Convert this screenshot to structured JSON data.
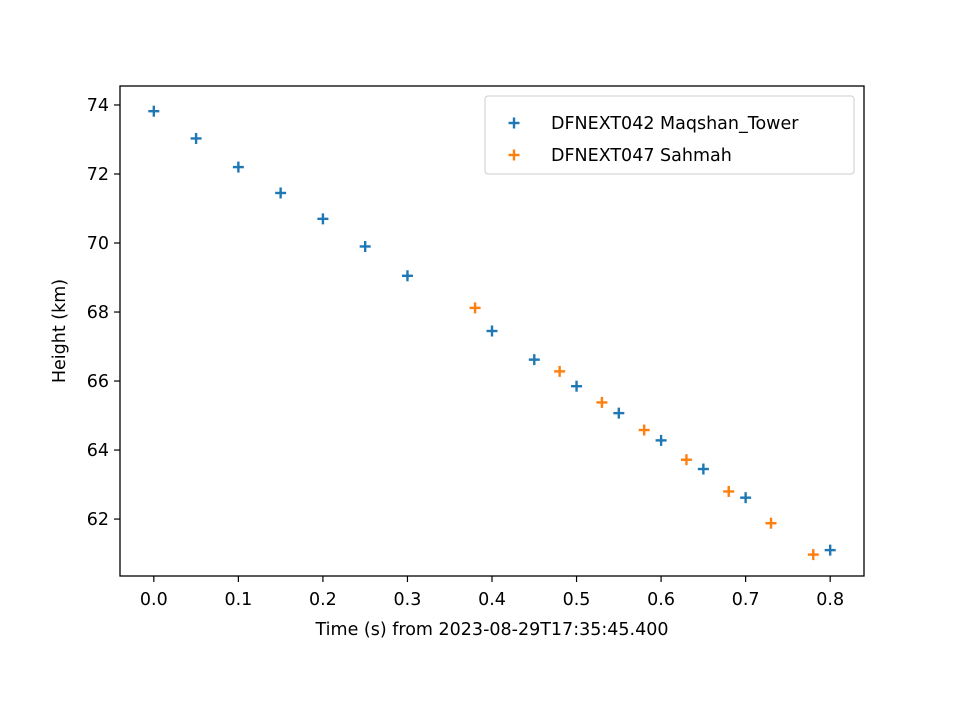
{
  "chart_data": {
    "type": "scatter",
    "title": "",
    "xlabel": "Time (s) from 2023-08-29T17:35:45.400",
    "ylabel": "Height (km)",
    "xlim": [
      -0.04,
      0.84
    ],
    "ylim": [
      60.35,
      74.55
    ],
    "xticks": [
      0.0,
      0.1,
      0.2,
      0.3,
      0.4,
      0.5,
      0.6,
      0.7,
      0.8
    ],
    "xtick_labels": [
      "0.0",
      "0.1",
      "0.2",
      "0.3",
      "0.4",
      "0.5",
      "0.6",
      "0.7",
      "0.8"
    ],
    "yticks": [
      62,
      64,
      66,
      68,
      70,
      72,
      74
    ],
    "ytick_labels": [
      "62",
      "64",
      "66",
      "68",
      "70",
      "72",
      "74"
    ],
    "grid": false,
    "legend_position": "top-right",
    "marker": "plus",
    "series": [
      {
        "name": "DFNEXT042 Maqshan_Tower",
        "color": "#1f77b4",
        "x": [
          0.0,
          0.05,
          0.1,
          0.15,
          0.2,
          0.25,
          0.3,
          0.4,
          0.45,
          0.5,
          0.55,
          0.6,
          0.65,
          0.7,
          0.8
        ],
        "y": [
          73.82,
          73.03,
          72.2,
          71.45,
          70.7,
          69.9,
          69.05,
          67.45,
          66.62,
          65.85,
          65.07,
          64.28,
          63.45,
          62.62,
          61.1
        ]
      },
      {
        "name": "DFNEXT047 Sahmah",
        "color": "#ff7f0e",
        "x": [
          0.38,
          0.48,
          0.53,
          0.58,
          0.63,
          0.68,
          0.73,
          0.78
        ],
        "y": [
          68.12,
          66.28,
          65.38,
          64.58,
          63.72,
          62.8,
          61.88,
          60.97
        ]
      }
    ]
  }
}
